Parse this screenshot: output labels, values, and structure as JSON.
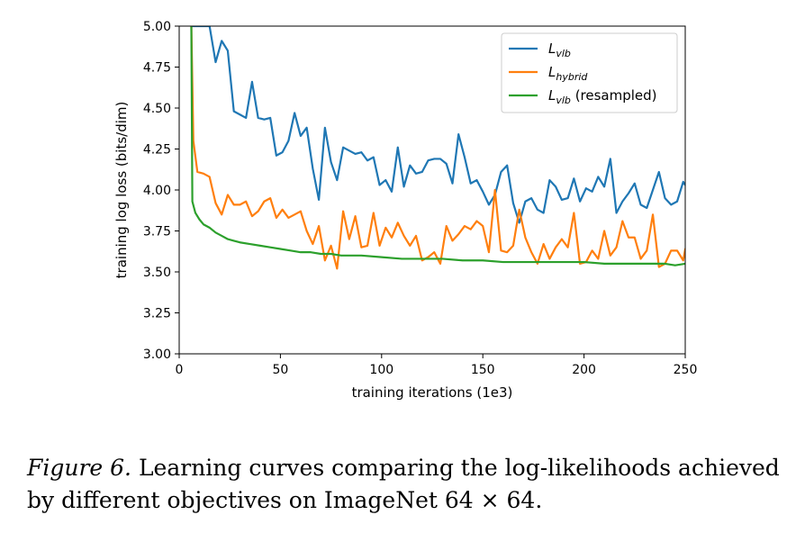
{
  "chart_data": {
    "type": "line",
    "title": "",
    "xlabel": "training iterations (1e3)",
    "ylabel": "training log loss (bits/dim)",
    "xlim": [
      0,
      250
    ],
    "ylim": [
      3.0,
      5.0
    ],
    "xticks": [
      0,
      50,
      100,
      150,
      200,
      250
    ],
    "xtick_labels": [
      "0",
      "50",
      "100",
      "150",
      "200",
      "250"
    ],
    "yticks": [
      3.0,
      3.25,
      3.5,
      3.75,
      4.0,
      4.25,
      4.5,
      4.75,
      5.0
    ],
    "ytick_labels": [
      "3.00",
      "3.25",
      "3.50",
      "3.75",
      "4.00",
      "4.25",
      "4.50",
      "4.75",
      "5.00"
    ],
    "grid": false,
    "legend_position": "top-right",
    "series": [
      {
        "name": "L_vlb",
        "legend_main": "L",
        "legend_sub": "vlb",
        "legend_suffix": "",
        "color": "#1f77b4",
        "x": [
          6,
          10,
          15,
          18,
          21,
          24,
          27,
          30,
          33,
          36,
          39,
          42,
          45,
          48,
          51,
          54,
          57,
          60,
          63,
          66,
          69,
          72,
          75,
          78,
          81,
          84,
          87,
          90,
          93,
          96,
          99,
          102,
          105,
          108,
          111,
          114,
          117,
          120,
          123,
          126,
          129,
          132,
          135,
          138,
          141,
          144,
          147,
          150,
          153,
          156,
          159,
          162,
          165,
          168,
          171,
          174,
          177,
          180,
          183,
          186,
          189,
          192,
          195,
          198,
          201,
          204,
          207,
          210,
          213,
          216,
          219,
          222,
          225,
          228,
          231,
          234,
          237,
          240,
          243,
          246,
          249,
          250
        ],
        "y": [
          5.0,
          5.0,
          5.0,
          4.78,
          4.91,
          4.85,
          4.48,
          4.46,
          4.44,
          4.66,
          4.44,
          4.43,
          4.44,
          4.21,
          4.23,
          4.3,
          4.47,
          4.33,
          4.38,
          4.13,
          3.94,
          4.38,
          4.17,
          4.06,
          4.26,
          4.24,
          4.22,
          4.23,
          4.18,
          4.2,
          4.03,
          4.06,
          3.99,
          4.26,
          4.02,
          4.15,
          4.1,
          4.11,
          4.18,
          4.19,
          4.19,
          4.16,
          4.04,
          4.34,
          4.2,
          4.04,
          4.06,
          3.99,
          3.91,
          3.97,
          4.11,
          4.15,
          3.92,
          3.8,
          3.93,
          3.95,
          3.88,
          3.86,
          4.06,
          4.02,
          3.94,
          3.95,
          4.07,
          3.93,
          4.01,
          3.99,
          4.08,
          4.02,
          4.19,
          3.86,
          3.93,
          3.98,
          4.04,
          3.91,
          3.89,
          4.0,
          4.11,
          3.95,
          3.91,
          3.93,
          4.05,
          4.03
        ]
      },
      {
        "name": "L_hybrid",
        "legend_main": "L",
        "legend_sub": "hybrid",
        "legend_suffix": "",
        "color": "#ff7f0e",
        "x": [
          6,
          7,
          9,
          12,
          15,
          18,
          21,
          24,
          27,
          30,
          33,
          36,
          39,
          42,
          45,
          48,
          51,
          54,
          57,
          60,
          63,
          66,
          69,
          72,
          75,
          78,
          81,
          84,
          87,
          90,
          93,
          96,
          99,
          102,
          105,
          108,
          111,
          114,
          117,
          120,
          123,
          126,
          129,
          132,
          135,
          138,
          141,
          144,
          147,
          150,
          153,
          156,
          159,
          162,
          165,
          168,
          171,
          174,
          177,
          180,
          183,
          186,
          189,
          192,
          195,
          198,
          201,
          204,
          207,
          210,
          213,
          216,
          219,
          222,
          225,
          228,
          231,
          234,
          237,
          240,
          243,
          246,
          249,
          250
        ],
        "y": [
          5.0,
          4.3,
          4.11,
          4.1,
          4.08,
          3.92,
          3.85,
          3.97,
          3.91,
          3.91,
          3.93,
          3.84,
          3.87,
          3.93,
          3.95,
          3.83,
          3.88,
          3.83,
          3.85,
          3.87,
          3.75,
          3.67,
          3.78,
          3.57,
          3.66,
          3.52,
          3.87,
          3.7,
          3.84,
          3.65,
          3.66,
          3.86,
          3.66,
          3.77,
          3.71,
          3.8,
          3.72,
          3.66,
          3.72,
          3.57,
          3.59,
          3.62,
          3.55,
          3.78,
          3.69,
          3.73,
          3.78,
          3.76,
          3.81,
          3.78,
          3.62,
          4.0,
          3.63,
          3.62,
          3.66,
          3.88,
          3.71,
          3.62,
          3.55,
          3.67,
          3.58,
          3.65,
          3.7,
          3.65,
          3.86,
          3.55,
          3.56,
          3.63,
          3.58,
          3.75,
          3.6,
          3.65,
          3.81,
          3.71,
          3.71,
          3.58,
          3.63,
          3.85,
          3.53,
          3.55,
          3.63,
          3.63,
          3.57,
          3.64
        ]
      },
      {
        "name": "L_vlb (resampled)",
        "legend_main": "L",
        "legend_sub": "vlb",
        "legend_suffix": " (resampled)",
        "color": "#2ca02c",
        "x": [
          6,
          6.5,
          8,
          10,
          12,
          15,
          18,
          21,
          24,
          27,
          30,
          35,
          40,
          45,
          50,
          55,
          60,
          65,
          70,
          75,
          80,
          90,
          100,
          110,
          120,
          130,
          140,
          150,
          160,
          170,
          180,
          190,
          200,
          210,
          220,
          230,
          240,
          245,
          250
        ],
        "y": [
          5.0,
          3.93,
          3.86,
          3.82,
          3.79,
          3.77,
          3.74,
          3.72,
          3.7,
          3.69,
          3.68,
          3.67,
          3.66,
          3.65,
          3.64,
          3.63,
          3.62,
          3.62,
          3.61,
          3.61,
          3.6,
          3.6,
          3.59,
          3.58,
          3.58,
          3.58,
          3.57,
          3.57,
          3.56,
          3.56,
          3.56,
          3.56,
          3.56,
          3.55,
          3.55,
          3.55,
          3.55,
          3.54,
          3.55
        ]
      }
    ]
  },
  "caption": {
    "label": "Figure 6.",
    "text": "Learning curves comparing the log-likelihoods achieved by different objectives on ImageNet 64 × 64."
  }
}
